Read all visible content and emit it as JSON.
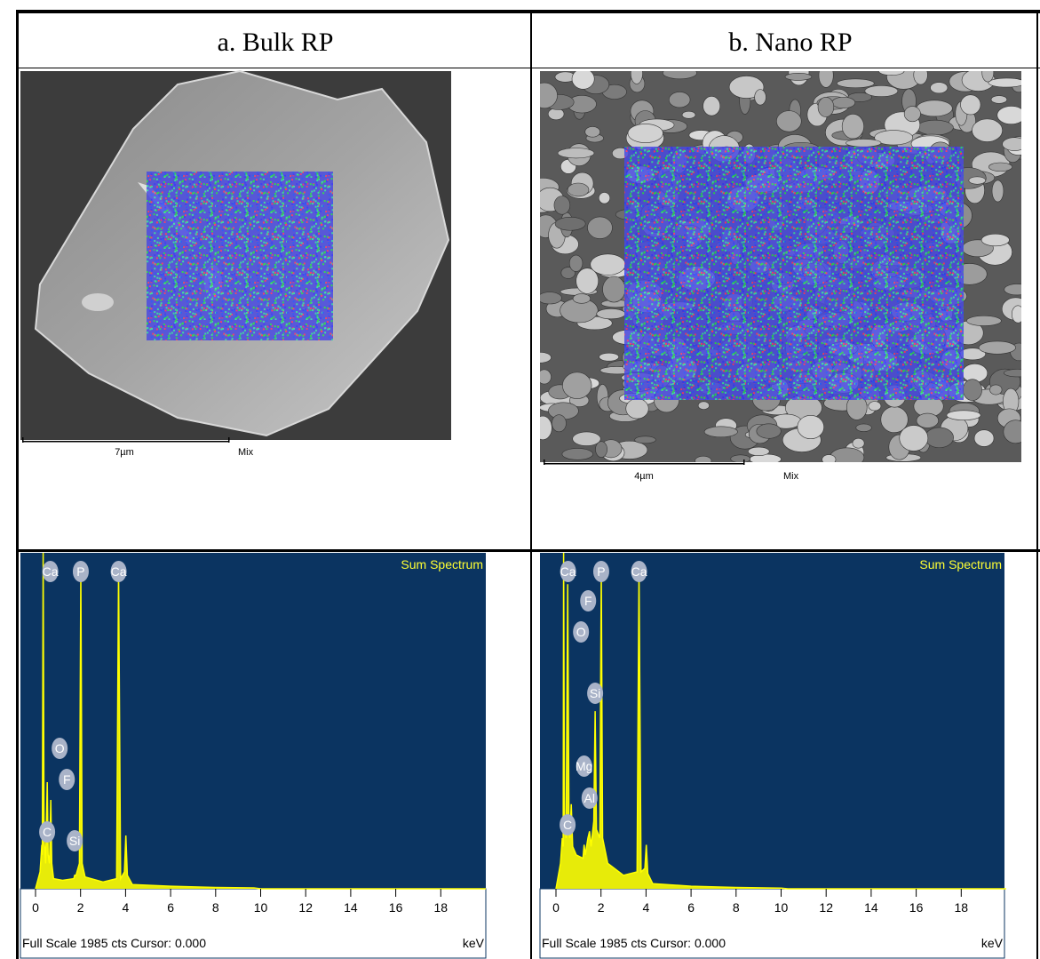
{
  "table": {
    "headers": [
      "a.  Bulk RP",
      "b. Nano RP"
    ]
  },
  "images": [
    {
      "scale": "7µm",
      "label": "Mix"
    },
    {
      "scale": "4µm",
      "label": "Mix"
    }
  ],
  "chart_data": [
    {
      "type": "line",
      "title": "Sum Spectrum",
      "x_label": "keV",
      "footer": "Full Scale 1985 cts Cursor: 0.000",
      "xlim": [
        0,
        20
      ],
      "xticks": [
        0,
        2,
        4,
        6,
        8,
        10,
        12,
        14,
        16,
        18
      ],
      "ylim": [
        0,
        1985
      ],
      "color": "#ffff00",
      "x": [
        0,
        0.2,
        0.28,
        0.3,
        0.34,
        0.38,
        0.45,
        0.52,
        0.56,
        0.62,
        0.68,
        0.72,
        0.8,
        1.2,
        1.7,
        1.74,
        1.8,
        1.95,
        2.01,
        2.07,
        2.2,
        3.0,
        3.6,
        3.69,
        3.78,
        3.95,
        4.01,
        4.08,
        4.3,
        6,
        8,
        9.7,
        10,
        20
      ],
      "values": [
        0,
        100,
        260,
        200,
        1985,
        300,
        150,
        630,
        200,
        150,
        525,
        150,
        60,
        50,
        60,
        80,
        80,
        150,
        1890,
        150,
        70,
        40,
        60,
        1890,
        60,
        100,
        315,
        80,
        25,
        15,
        8,
        5,
        0,
        0
      ],
      "peaks": [
        {
          "label": "Ca",
          "x": 0.34
        },
        {
          "label": "P",
          "x": 2.01
        },
        {
          "label": "Ca",
          "x": 3.69
        },
        {
          "label": "O",
          "x": 0.52
        },
        {
          "label": "F",
          "x": 0.68
        },
        {
          "label": "C",
          "x": 0.28
        },
        {
          "label": "Si",
          "x": 1.74
        }
      ]
    },
    {
      "type": "line",
      "title": "Sum Spectrum",
      "x_label": "keV",
      "footer": "Full Scale 1985 cts Cursor: 0.000",
      "xlim": [
        0,
        20
      ],
      "xticks": [
        0,
        2,
        4,
        6,
        8,
        10,
        12,
        14,
        16,
        18
      ],
      "ylim": [
        0,
        1985
      ],
      "color": "#ffff00",
      "x": [
        0,
        0.2,
        0.28,
        0.32,
        0.34,
        0.38,
        0.45,
        0.52,
        0.58,
        0.62,
        0.68,
        0.74,
        0.9,
        1.2,
        1.25,
        1.3,
        1.42,
        1.49,
        1.56,
        1.68,
        1.74,
        1.8,
        1.95,
        2.01,
        2.07,
        2.3,
        3.0,
        3.6,
        3.69,
        3.78,
        3.95,
        4.01,
        4.08,
        4.3,
        6,
        8,
        10,
        10.3,
        20
      ],
      "values": [
        0,
        150,
        300,
        250,
        1985,
        400,
        300,
        1800,
        350,
        300,
        500,
        250,
        200,
        180,
        260,
        200,
        300,
        340,
        250,
        400,
        1050,
        350,
        300,
        1890,
        300,
        150,
        80,
        100,
        1890,
        100,
        120,
        260,
        90,
        30,
        15,
        8,
        4,
        0,
        0
      ],
      "peaks": [
        {
          "label": "Ca",
          "x": 0.34
        },
        {
          "label": "P",
          "x": 2.01
        },
        {
          "label": "Ca",
          "x": 3.69
        },
        {
          "label": "F",
          "x": 0.68
        },
        {
          "label": "O",
          "x": 0.52
        },
        {
          "label": "Si",
          "x": 1.74
        },
        {
          "label": "Mg",
          "x": 1.25
        },
        {
          "label": "Al",
          "x": 1.49
        },
        {
          "label": "C",
          "x": 0.28
        }
      ]
    }
  ]
}
